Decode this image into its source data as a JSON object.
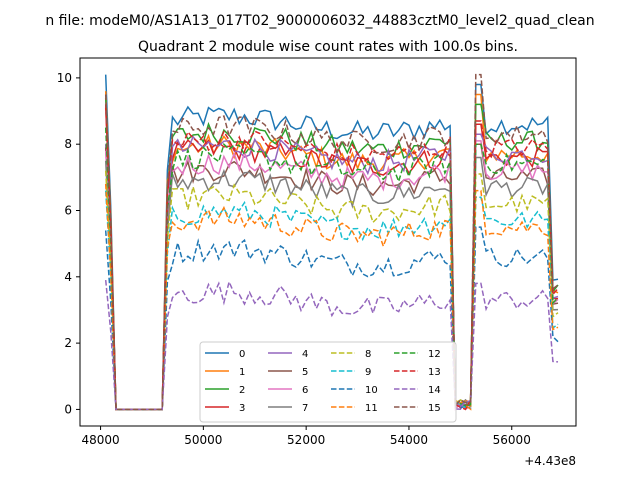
{
  "chart_data": {
    "type": "line",
    "suptitle": "n file: modeM0/AS1A13_017T02_9000006032_44883cztM0_level2_quad_clean",
    "title": "Quadrant 2 module wise count rates with 100.0s bins.",
    "xlabel": "",
    "ylabel": "",
    "x_offset_label": "+4.43e8",
    "xlim": [
      47600,
      57250
    ],
    "ylim": [
      -0.5,
      10.6
    ],
    "x_ticks": [
      48000,
      50000,
      52000,
      54000,
      56000
    ],
    "x_tick_labels": [
      "48000",
      "50000",
      "52000",
      "54000",
      "56000"
    ],
    "y_ticks": [
      0,
      2,
      4,
      6,
      8,
      10
    ],
    "y_tick_labels": [
      "0",
      "2",
      "4",
      "6",
      "8",
      "10"
    ],
    "legend_position": "bottom-center",
    "legend_columns": 4,
    "bin_seconds": 100,
    "x_start": 48100,
    "segments": [
      [
        48100,
        49100
      ],
      [
        49200,
        54800
      ],
      [
        55300,
        56900
      ]
    ],
    "series": [
      {
        "name": "0",
        "color": "#1f77b4",
        "dash": "solid",
        "level": 8.6,
        "first": 10.1,
        "second": 9.8
      },
      {
        "name": "1",
        "color": "#ff7f0e",
        "dash": "solid",
        "level": 7.7,
        "first": 9.6,
        "second": 9.5
      },
      {
        "name": "2",
        "color": "#2ca02c",
        "dash": "solid",
        "level": 8.1,
        "first": 9.4,
        "second": 9.2
      },
      {
        "name": "3",
        "color": "#d62728",
        "dash": "solid",
        "level": 7.6,
        "first": 9.1,
        "second": 8.6
      },
      {
        "name": "4",
        "color": "#9467bd",
        "dash": "solid",
        "level": 7.7,
        "first": 8.0,
        "second": 8.3
      },
      {
        "name": "5",
        "color": "#8c564b",
        "dash": "solid",
        "level": 7.0,
        "first": 7.9,
        "second": 8.0
      },
      {
        "name": "6",
        "color": "#e377c2",
        "dash": "solid",
        "level": 7.2,
        "first": 7.8,
        "second": 8.1
      },
      {
        "name": "7",
        "color": "#7f7f7f",
        "dash": "solid",
        "level": 6.7,
        "first": 7.5,
        "second": 7.6
      },
      {
        "name": "8",
        "color": "#bcbd22",
        "dash": "dashed",
        "level": 6.2,
        "first": 7.2,
        "second": 7.1
      },
      {
        "name": "9",
        "color": "#17becf",
        "dash": "dashed",
        "level": 5.7,
        "first": 6.6,
        "second": 6.4
      },
      {
        "name": "10",
        "color": "#1f77b4",
        "dash": "dashed",
        "level": 4.6,
        "first": 5.4,
        "second": 5.5
      },
      {
        "name": "11",
        "color": "#ff7f0e",
        "dash": "dashed",
        "level": 5.5,
        "first": 6.8,
        "second": 6.6
      },
      {
        "name": "12",
        "color": "#2ca02c",
        "dash": "dashed",
        "level": 7.4,
        "first": 8.5,
        "second": 8.0
      },
      {
        "name": "13",
        "color": "#d62728",
        "dash": "dashed",
        "level": 7.9,
        "first": 9.2,
        "second": 8.7
      },
      {
        "name": "14",
        "color": "#9467bd",
        "dash": "dashed",
        "level": 3.3,
        "first": 3.9,
        "second": 3.8
      },
      {
        "name": "15",
        "color": "#8c564b",
        "dash": "dashed",
        "level": 8.3,
        "first": 9.5,
        "second": 10.1
      }
    ]
  }
}
